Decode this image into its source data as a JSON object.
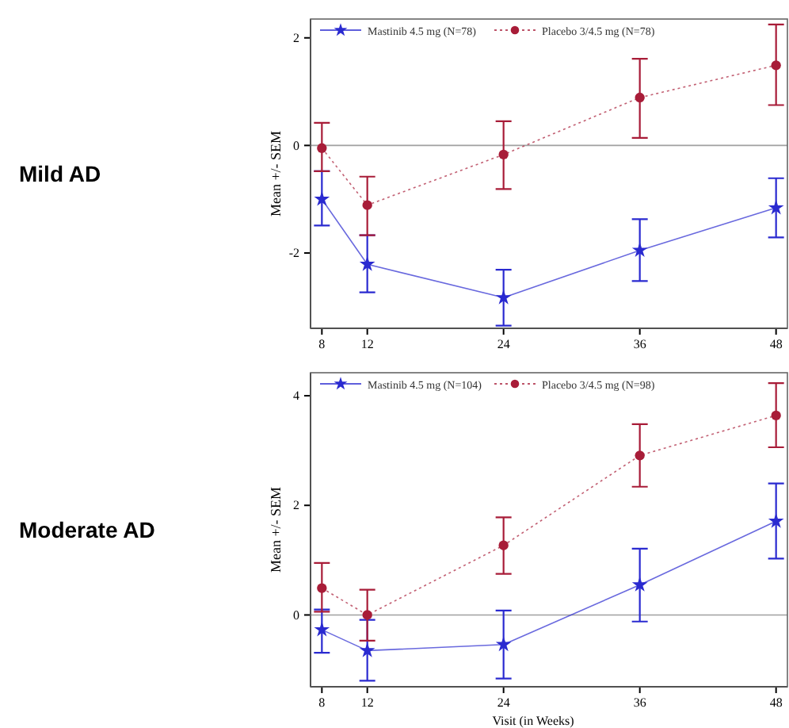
{
  "chart_data": [
    {
      "type": "line",
      "annotations": [
        "Mild AD"
      ],
      "ylabel": "Mean +/- SEM",
      "x": [
        8,
        12,
        24,
        36,
        48
      ],
      "xlim": [
        7,
        49
      ],
      "xticks": [
        8,
        12,
        24,
        36,
        48
      ],
      "ylim": [
        -3.4,
        2.35
      ],
      "yticks": [
        -2,
        0,
        2
      ],
      "legend": "top left",
      "grid": false,
      "ref_lines": [
        {
          "axis": "y",
          "value": 0,
          "color": "#a0a0a0"
        }
      ],
      "series": [
        {
          "name": "Mastinib 4.5 mg (N=78)",
          "color": "#2a2ad0",
          "marker": "star",
          "line_style": "solid",
          "values": [
            -1.0,
            -2.21,
            -2.83,
            -1.95,
            -1.16
          ],
          "errors": [
            [
              -1.49,
              -0.48
            ],
            [
              -2.73,
              -1.67
            ],
            [
              -3.35,
              -2.31
            ],
            [
              -2.52,
              -1.37
            ],
            [
              -1.71,
              -0.61
            ]
          ]
        },
        {
          "name": "Placebo 3/4.5 mg (N=78)",
          "color": "#a81c38",
          "marker": "circle",
          "line_style": "dotted",
          "values": [
            -0.05,
            -1.11,
            -0.17,
            0.89,
            1.49
          ],
          "errors": [
            [
              -0.48,
              0.42
            ],
            [
              -1.67,
              -0.58
            ],
            [
              -0.81,
              0.45
            ],
            [
              0.14,
              1.61
            ],
            [
              0.75,
              2.25
            ]
          ]
        }
      ]
    },
    {
      "type": "line",
      "annotations": [
        "Moderate AD"
      ],
      "xlabel": "Visit (in Weeks)",
      "ylabel": "Mean +/- SEM",
      "x": [
        8,
        12,
        24,
        36,
        48
      ],
      "xlim": [
        7,
        49
      ],
      "xticks": [
        8,
        12,
        24,
        36,
        48
      ],
      "ylim": [
        -1.31,
        4.42
      ],
      "yticks": [
        0,
        2,
        4
      ],
      "legend": "top left",
      "grid": false,
      "ref_lines": [
        {
          "axis": "y",
          "value": 0,
          "color": "#a0a0a0"
        }
      ],
      "series": [
        {
          "name": "Mastinib 4.5 mg (N=104)",
          "color": "#2a2ad0",
          "marker": "star",
          "line_style": "solid",
          "values": [
            -0.27,
            -0.65,
            -0.54,
            0.55,
            1.71
          ],
          "errors": [
            [
              -0.69,
              0.1
            ],
            [
              -1.2,
              -0.09
            ],
            [
              -1.16,
              0.08
            ],
            [
              -0.12,
              1.21
            ],
            [
              1.03,
              2.4
            ]
          ]
        },
        {
          "name": "Placebo 3/4.5 mg (N=98)",
          "color": "#a81c38",
          "marker": "circle",
          "line_style": "dotted",
          "values": [
            0.49,
            0.0,
            1.27,
            2.91,
            3.64
          ],
          "errors": [
            [
              0.06,
              0.95
            ],
            [
              -0.47,
              0.46
            ],
            [
              0.75,
              1.78
            ],
            [
              2.34,
              3.48
            ],
            [
              3.06,
              4.23
            ]
          ]
        }
      ]
    }
  ]
}
